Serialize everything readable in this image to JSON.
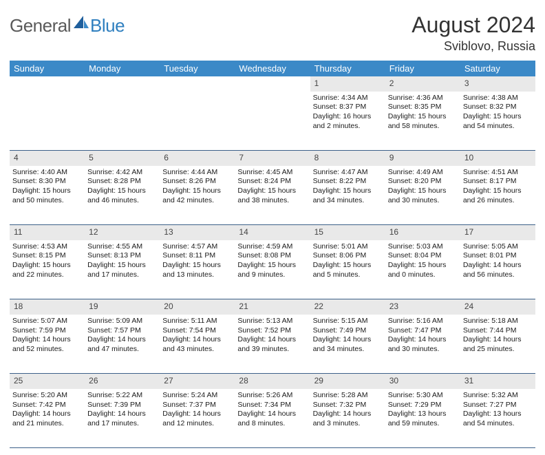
{
  "brand": {
    "part1": "General",
    "part2": "Blue"
  },
  "title": "August 2024",
  "location": "Sviblovo, Russia",
  "colors": {
    "header_bg": "#3b89c7",
    "header_text": "#ffffff",
    "daynum_bg": "#e9e9e9",
    "row_divider": "#3b5f88",
    "brand_gray": "#5a5a5a",
    "brand_blue": "#2f7fbf"
  },
  "weekdays": [
    "Sunday",
    "Monday",
    "Tuesday",
    "Wednesday",
    "Thursday",
    "Friday",
    "Saturday"
  ],
  "first_weekday_index": 4,
  "days": [
    {
      "n": 1,
      "sunrise": "4:34 AM",
      "sunset": "8:37 PM",
      "daylight": "16 hours and 2 minutes."
    },
    {
      "n": 2,
      "sunrise": "4:36 AM",
      "sunset": "8:35 PM",
      "daylight": "15 hours and 58 minutes."
    },
    {
      "n": 3,
      "sunrise": "4:38 AM",
      "sunset": "8:32 PM",
      "daylight": "15 hours and 54 minutes."
    },
    {
      "n": 4,
      "sunrise": "4:40 AM",
      "sunset": "8:30 PM",
      "daylight": "15 hours and 50 minutes."
    },
    {
      "n": 5,
      "sunrise": "4:42 AM",
      "sunset": "8:28 PM",
      "daylight": "15 hours and 46 minutes."
    },
    {
      "n": 6,
      "sunrise": "4:44 AM",
      "sunset": "8:26 PM",
      "daylight": "15 hours and 42 minutes."
    },
    {
      "n": 7,
      "sunrise": "4:45 AM",
      "sunset": "8:24 PM",
      "daylight": "15 hours and 38 minutes."
    },
    {
      "n": 8,
      "sunrise": "4:47 AM",
      "sunset": "8:22 PM",
      "daylight": "15 hours and 34 minutes."
    },
    {
      "n": 9,
      "sunrise": "4:49 AM",
      "sunset": "8:20 PM",
      "daylight": "15 hours and 30 minutes."
    },
    {
      "n": 10,
      "sunrise": "4:51 AM",
      "sunset": "8:17 PM",
      "daylight": "15 hours and 26 minutes."
    },
    {
      "n": 11,
      "sunrise": "4:53 AM",
      "sunset": "8:15 PM",
      "daylight": "15 hours and 22 minutes."
    },
    {
      "n": 12,
      "sunrise": "4:55 AM",
      "sunset": "8:13 PM",
      "daylight": "15 hours and 17 minutes."
    },
    {
      "n": 13,
      "sunrise": "4:57 AM",
      "sunset": "8:11 PM",
      "daylight": "15 hours and 13 minutes."
    },
    {
      "n": 14,
      "sunrise": "4:59 AM",
      "sunset": "8:08 PM",
      "daylight": "15 hours and 9 minutes."
    },
    {
      "n": 15,
      "sunrise": "5:01 AM",
      "sunset": "8:06 PM",
      "daylight": "15 hours and 5 minutes."
    },
    {
      "n": 16,
      "sunrise": "5:03 AM",
      "sunset": "8:04 PM",
      "daylight": "15 hours and 0 minutes."
    },
    {
      "n": 17,
      "sunrise": "5:05 AM",
      "sunset": "8:01 PM",
      "daylight": "14 hours and 56 minutes."
    },
    {
      "n": 18,
      "sunrise": "5:07 AM",
      "sunset": "7:59 PM",
      "daylight": "14 hours and 52 minutes."
    },
    {
      "n": 19,
      "sunrise": "5:09 AM",
      "sunset": "7:57 PM",
      "daylight": "14 hours and 47 minutes."
    },
    {
      "n": 20,
      "sunrise": "5:11 AM",
      "sunset": "7:54 PM",
      "daylight": "14 hours and 43 minutes."
    },
    {
      "n": 21,
      "sunrise": "5:13 AM",
      "sunset": "7:52 PM",
      "daylight": "14 hours and 39 minutes."
    },
    {
      "n": 22,
      "sunrise": "5:15 AM",
      "sunset": "7:49 PM",
      "daylight": "14 hours and 34 minutes."
    },
    {
      "n": 23,
      "sunrise": "5:16 AM",
      "sunset": "7:47 PM",
      "daylight": "14 hours and 30 minutes."
    },
    {
      "n": 24,
      "sunrise": "5:18 AM",
      "sunset": "7:44 PM",
      "daylight": "14 hours and 25 minutes."
    },
    {
      "n": 25,
      "sunrise": "5:20 AM",
      "sunset": "7:42 PM",
      "daylight": "14 hours and 21 minutes."
    },
    {
      "n": 26,
      "sunrise": "5:22 AM",
      "sunset": "7:39 PM",
      "daylight": "14 hours and 17 minutes."
    },
    {
      "n": 27,
      "sunrise": "5:24 AM",
      "sunset": "7:37 PM",
      "daylight": "14 hours and 12 minutes."
    },
    {
      "n": 28,
      "sunrise": "5:26 AM",
      "sunset": "7:34 PM",
      "daylight": "14 hours and 8 minutes."
    },
    {
      "n": 29,
      "sunrise": "5:28 AM",
      "sunset": "7:32 PM",
      "daylight": "14 hours and 3 minutes."
    },
    {
      "n": 30,
      "sunrise": "5:30 AM",
      "sunset": "7:29 PM",
      "daylight": "13 hours and 59 minutes."
    },
    {
      "n": 31,
      "sunrise": "5:32 AM",
      "sunset": "7:27 PM",
      "daylight": "13 hours and 54 minutes."
    }
  ],
  "labels": {
    "sunrise": "Sunrise:",
    "sunset": "Sunset:",
    "daylight": "Daylight:"
  }
}
